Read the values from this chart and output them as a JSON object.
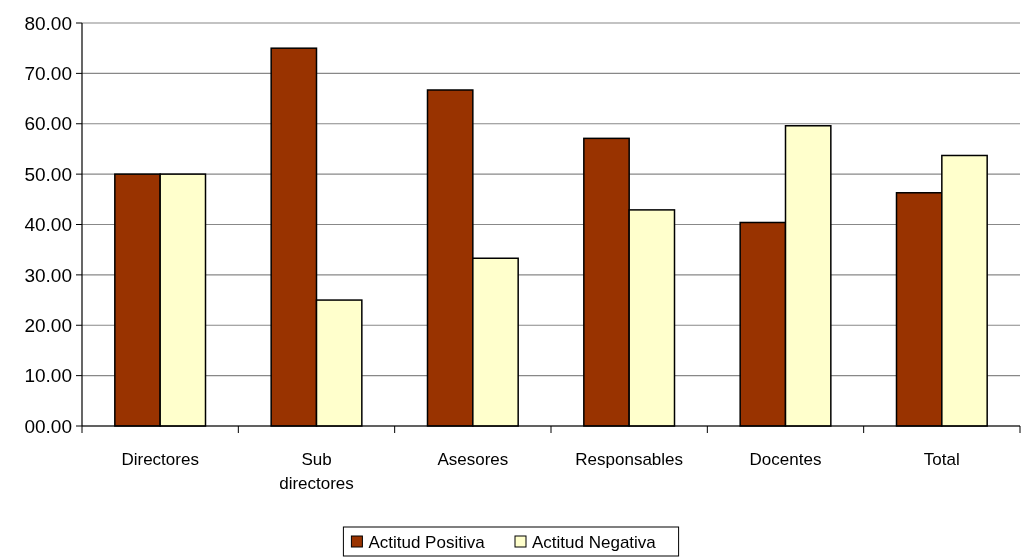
{
  "chart_data": {
    "type": "bar",
    "categories": [
      "Directores",
      "Sub directores",
      "Asesores",
      "Responsables",
      "Docentes",
      "Total"
    ],
    "series": [
      {
        "name": "Actitud Positiva",
        "color": "#993300",
        "values": [
          50,
          75,
          66.7,
          57.1,
          40.4,
          46.3
        ]
      },
      {
        "name": "Actitud Negativa",
        "color": "#ffffcc",
        "values": [
          50,
          25,
          33.3,
          42.9,
          59.6,
          53.7
        ]
      }
    ],
    "ylim": [
      0,
      80
    ],
    "yticks": [
      {
        "value": 0,
        "label": "00.00"
      },
      {
        "value": 10,
        "label": "10.00"
      },
      {
        "value": 20,
        "label": "20.00"
      },
      {
        "value": 30,
        "label": "30.00"
      },
      {
        "value": 40,
        "label": "40.00"
      },
      {
        "value": 50,
        "label": "50.00"
      },
      {
        "value": 60,
        "label": "60.00"
      },
      {
        "value": 70,
        "label": "70.00"
      },
      {
        "value": 80,
        "label": "80.00"
      }
    ],
    "grid": "y",
    "legend": "bottom"
  }
}
